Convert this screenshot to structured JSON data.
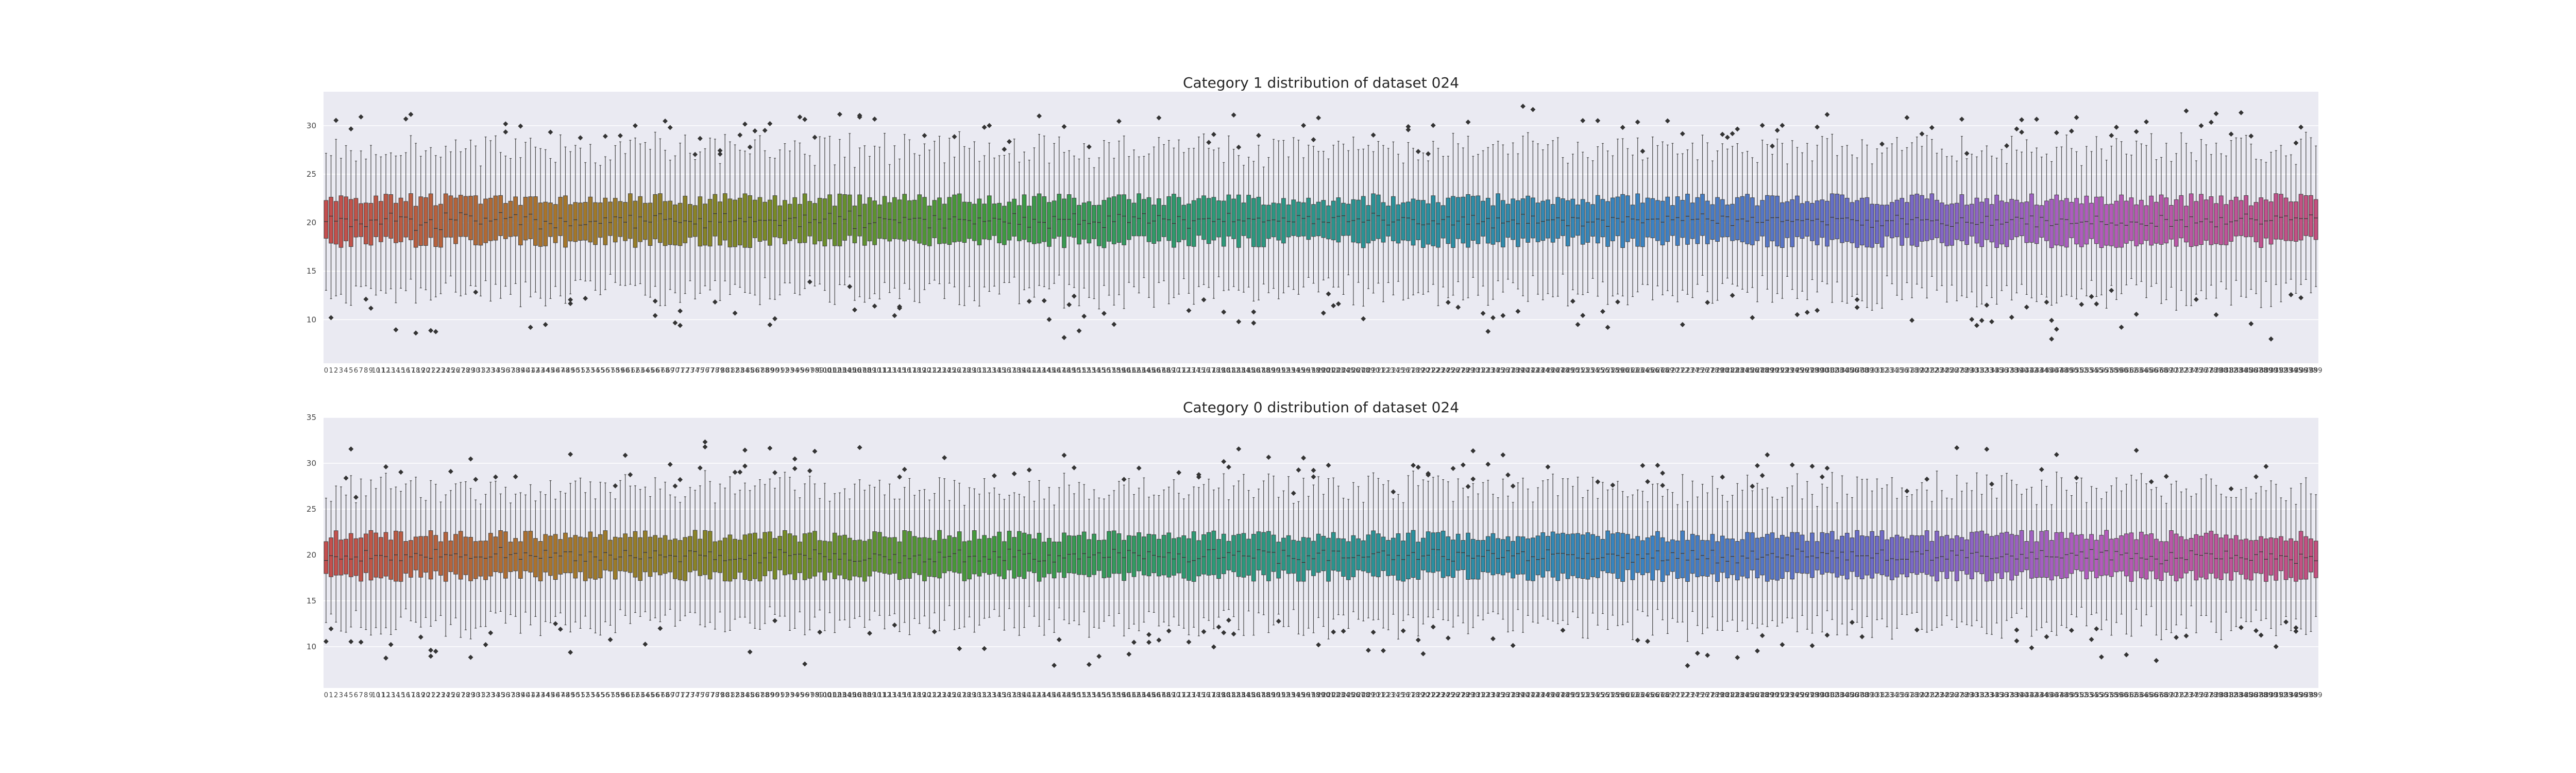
{
  "chart_data": [
    {
      "type": "box",
      "title": "Category 1 distribution of dataset 024",
      "xlabel": "",
      "ylabel": "",
      "ylim": [
        5.5,
        33.5
      ],
      "yticks": [
        10,
        15,
        20,
        25,
        30
      ],
      "grid": true,
      "legend": "none",
      "box_count": 400,
      "x_tick_labels": "0, 1, 2, … 399",
      "median_level": 20.3,
      "box_spread": "about 18.5 to 22.5",
      "whisker_spread": "about 13 to 28",
      "outlier_range": [
        7,
        32
      ],
      "palette": [
        "#c44e4e",
        "#a9742c",
        "#7a8a25",
        "#3f9a3c",
        "#2b9a76",
        "#2a8fa0",
        "#3b82c4",
        "#6d6bc8",
        "#b45bbf",
        "#c4507f"
      ]
    },
    {
      "type": "box",
      "title": "Category 0 distribution of dataset 024",
      "xlabel": "",
      "ylabel": "",
      "ylim": [
        5.5,
        35
      ],
      "yticks": [
        10,
        15,
        20,
        25,
        30,
        35
      ],
      "grid": true,
      "legend": "none",
      "box_count": 400,
      "x_tick_labels": "0, 1, 2, … 399",
      "median_level": 20.0,
      "box_spread": "about 18 to 22.5",
      "whisker_spread": "about 12 to 28",
      "outlier_range": [
        7,
        33.5
      ],
      "palette": [
        "#c44e4e",
        "#a9742c",
        "#7a8a25",
        "#3f9a3c",
        "#2b9a76",
        "#2a8fa0",
        "#3b82c4",
        "#6d6bc8",
        "#b45bbf",
        "#c4507f"
      ]
    }
  ]
}
